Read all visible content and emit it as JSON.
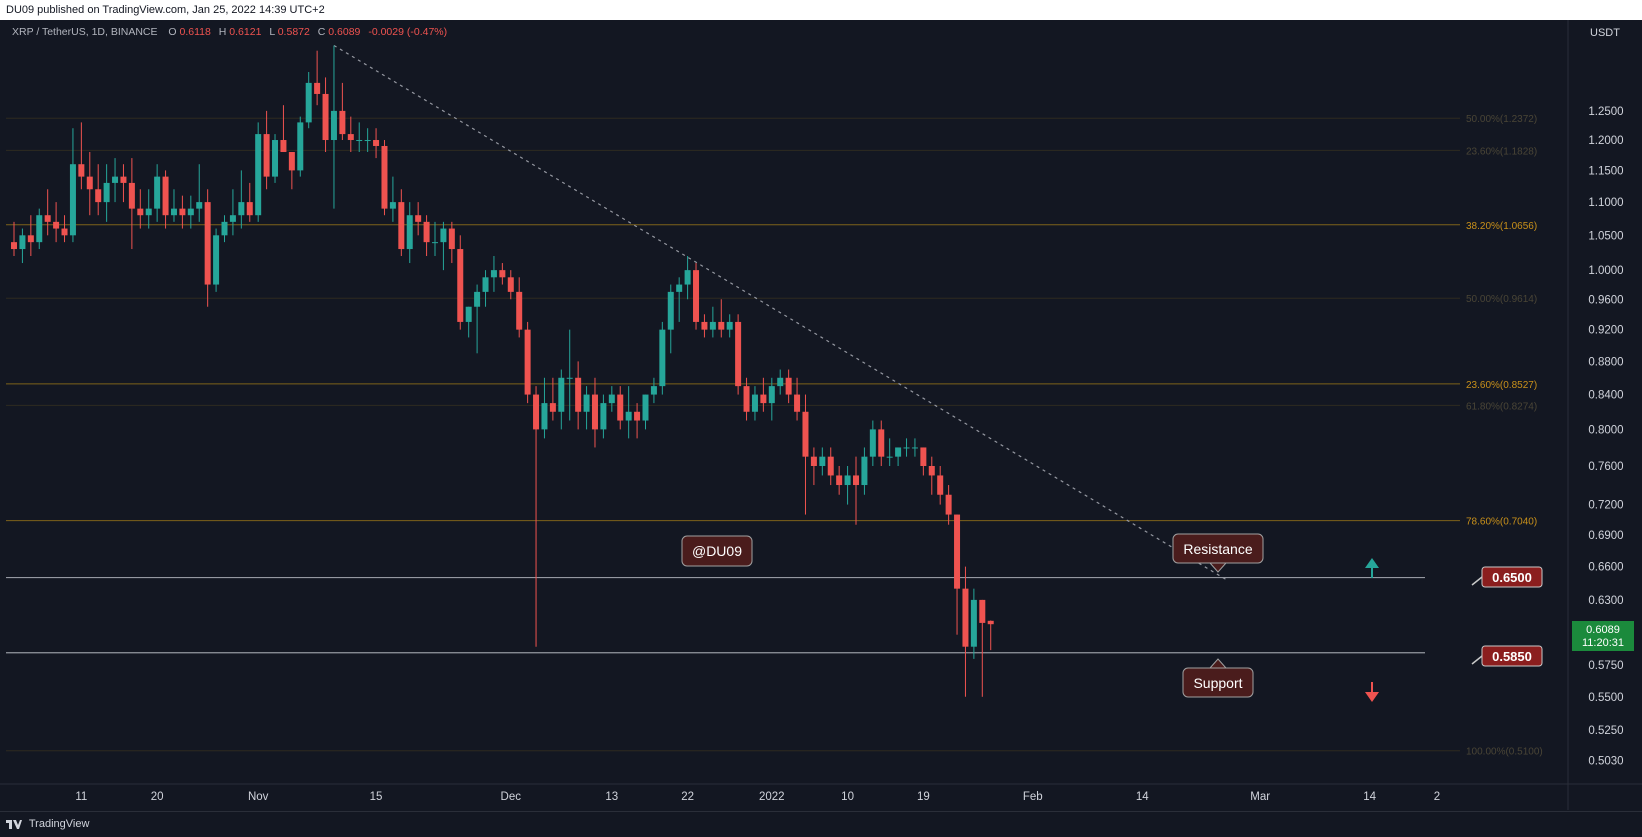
{
  "header": {
    "published_text": "DU09 published on TradingView.com, Jan 25, 2022 14:39 UTC+2"
  },
  "footer": {
    "brand": "TradingView"
  },
  "colors": {
    "background": "#131722",
    "up": "#26a69a",
    "down": "#ef5350",
    "fib": "#b8860b",
    "text": "#b2b5be",
    "grid": "#2a2e39",
    "label_bg": "#4a1c1c",
    "price_tag_bg": "#1b8a3c"
  },
  "chart_data": {
    "type": "candlestick",
    "symbol_line": {
      "symbol": "XRP / TetherUS, 1D, BINANCE",
      "o_label": "O",
      "o_value": "0.6118",
      "h_label": "H",
      "h_value": "0.6121",
      "l_label": "L",
      "l_value": "0.5872",
      "c_label": "C",
      "c_value": "0.6089",
      "change": "-0.0029 (-0.47%)"
    },
    "currency": "USDT",
    "y_scale": "log",
    "y_range": [
      0.495,
      1.4
    ],
    "x_range": [
      0,
      149
    ],
    "y_ticks": [
      "1.2500",
      "1.2000",
      "1.1500",
      "1.1000",
      "1.0500",
      "1.0000",
      "0.9600",
      "0.9200",
      "0.8800",
      "0.8400",
      "0.8000",
      "0.7600",
      "0.7200",
      "0.6900",
      "0.6600",
      "0.6300",
      "0.5750",
      "0.5500",
      "0.5250",
      "0.5030"
    ],
    "x_ticks": [
      {
        "label": "11",
        "day": 8
      },
      {
        "label": "20",
        "day": 17
      },
      {
        "label": "Nov",
        "day": 29
      },
      {
        "label": "15",
        "day": 43
      },
      {
        "label": "Dec",
        "day": 59
      },
      {
        "label": "13",
        "day": 71
      },
      {
        "label": "22",
        "day": 80
      },
      {
        "label": "2022",
        "day": 90
      },
      {
        "label": "10",
        "day": 99
      },
      {
        "label": "19",
        "day": 108
      },
      {
        "label": "Feb",
        "day": 121
      },
      {
        "label": "14",
        "day": 134
      },
      {
        "label": "Mar",
        "day": 148
      },
      {
        "label": "14",
        "day": 161
      },
      {
        "label": "2",
        "day": 169
      }
    ],
    "fib_levels": [
      {
        "label": "38.20%(1.0656)",
        "value": 1.0656,
        "style": "solid"
      },
      {
        "label": "23.60%(0.8527)",
        "value": 0.8527,
        "style": "solid"
      },
      {
        "label": "78.60%(0.7040)",
        "value": 0.704,
        "style": "solid"
      },
      {
        "label": "50.00%(1.2372)",
        "value": 1.2372,
        "style": "faint"
      },
      {
        "label": "23.60%(1.1828)",
        "value": 1.1828,
        "style": "faint"
      },
      {
        "label": "50.00%(0.9614)",
        "value": 0.9614,
        "style": "faint"
      },
      {
        "label": "61.80%(0.8274)",
        "value": 0.8274,
        "style": "faint"
      },
      {
        "label": "100.00%(0.5100)",
        "value": 0.51,
        "style": "faint"
      }
    ],
    "horizontal_levels": [
      {
        "name": "Resistance",
        "value": 0.65,
        "tag": "0.6500"
      },
      {
        "name": "Support",
        "value": 0.585,
        "tag": "0.5850"
      }
    ],
    "current_price": {
      "price": "0.6089",
      "countdown": "11:20:31"
    },
    "annotations": {
      "watermark": "@DU09",
      "resistance": "Resistance",
      "support": "Support"
    },
    "trendline": {
      "from": {
        "day": 38,
        "value": 1.37
      },
      "to": {
        "day": 144,
        "value": 0.648
      }
    },
    "candles": [
      {
        "o": 1.04,
        "h": 1.07,
        "l": 1.02,
        "c": 1.03
      },
      {
        "o": 1.03,
        "h": 1.06,
        "l": 1.01,
        "c": 1.05
      },
      {
        "o": 1.05,
        "h": 1.08,
        "l": 1.02,
        "c": 1.04
      },
      {
        "o": 1.04,
        "h": 1.09,
        "l": 1.03,
        "c": 1.08
      },
      {
        "o": 1.08,
        "h": 1.12,
        "l": 1.05,
        "c": 1.07
      },
      {
        "o": 1.07,
        "h": 1.1,
        "l": 1.04,
        "c": 1.06
      },
      {
        "o": 1.06,
        "h": 1.08,
        "l": 1.04,
        "c": 1.05
      },
      {
        "o": 1.05,
        "h": 1.22,
        "l": 1.04,
        "c": 1.16
      },
      {
        "o": 1.16,
        "h": 1.23,
        "l": 1.12,
        "c": 1.14
      },
      {
        "o": 1.14,
        "h": 1.18,
        "l": 1.08,
        "c": 1.12
      },
      {
        "o": 1.12,
        "h": 1.16,
        "l": 1.08,
        "c": 1.1
      },
      {
        "o": 1.1,
        "h": 1.16,
        "l": 1.07,
        "c": 1.13
      },
      {
        "o": 1.13,
        "h": 1.17,
        "l": 1.1,
        "c": 1.14
      },
      {
        "o": 1.14,
        "h": 1.16,
        "l": 1.1,
        "c": 1.13
      },
      {
        "o": 1.13,
        "h": 1.17,
        "l": 1.03,
        "c": 1.09
      },
      {
        "o": 1.09,
        "h": 1.12,
        "l": 1.06,
        "c": 1.08
      },
      {
        "o": 1.08,
        "h": 1.12,
        "l": 1.06,
        "c": 1.09
      },
      {
        "o": 1.09,
        "h": 1.16,
        "l": 1.07,
        "c": 1.14
      },
      {
        "o": 1.14,
        "h": 1.15,
        "l": 1.06,
        "c": 1.08
      },
      {
        "o": 1.08,
        "h": 1.12,
        "l": 1.07,
        "c": 1.09
      },
      {
        "o": 1.09,
        "h": 1.11,
        "l": 1.06,
        "c": 1.08
      },
      {
        "o": 1.08,
        "h": 1.11,
        "l": 1.06,
        "c": 1.09
      },
      {
        "o": 1.09,
        "h": 1.16,
        "l": 1.07,
        "c": 1.1
      },
      {
        "o": 1.1,
        "h": 1.12,
        "l": 0.95,
        "c": 0.98
      },
      {
        "o": 0.98,
        "h": 1.06,
        "l": 0.97,
        "c": 1.05
      },
      {
        "o": 1.05,
        "h": 1.08,
        "l": 1.04,
        "c": 1.07
      },
      {
        "o": 1.07,
        "h": 1.12,
        "l": 1.05,
        "c": 1.08
      },
      {
        "o": 1.08,
        "h": 1.15,
        "l": 1.06,
        "c": 1.1
      },
      {
        "o": 1.1,
        "h": 1.13,
        "l": 1.07,
        "c": 1.08
      },
      {
        "o": 1.08,
        "h": 1.23,
        "l": 1.07,
        "c": 1.21
      },
      {
        "o": 1.21,
        "h": 1.25,
        "l": 1.12,
        "c": 1.14
      },
      {
        "o": 1.14,
        "h": 1.21,
        "l": 1.13,
        "c": 1.2
      },
      {
        "o": 1.2,
        "h": 1.26,
        "l": 1.18,
        "c": 1.18
      },
      {
        "o": 1.18,
        "h": 1.18,
        "l": 1.12,
        "c": 1.15
      },
      {
        "o": 1.15,
        "h": 1.24,
        "l": 1.14,
        "c": 1.23
      },
      {
        "o": 1.23,
        "h": 1.32,
        "l": 1.22,
        "c": 1.3
      },
      {
        "o": 1.3,
        "h": 1.36,
        "l": 1.26,
        "c": 1.28
      },
      {
        "o": 1.28,
        "h": 1.31,
        "l": 1.18,
        "c": 1.2
      },
      {
        "o": 1.2,
        "h": 1.37,
        "l": 1.09,
        "c": 1.25
      },
      {
        "o": 1.25,
        "h": 1.3,
        "l": 1.2,
        "c": 1.21
      },
      {
        "o": 1.21,
        "h": 1.24,
        "l": 1.18,
        "c": 1.2
      },
      {
        "o": 1.2,
        "h": 1.23,
        "l": 1.18,
        "c": 1.2
      },
      {
        "o": 1.2,
        "h": 1.22,
        "l": 1.18,
        "c": 1.2
      },
      {
        "o": 1.2,
        "h": 1.22,
        "l": 1.17,
        "c": 1.19
      },
      {
        "o": 1.19,
        "h": 1.2,
        "l": 1.08,
        "c": 1.09
      },
      {
        "o": 1.09,
        "h": 1.14,
        "l": 1.07,
        "c": 1.1
      },
      {
        "o": 1.1,
        "h": 1.12,
        "l": 1.02,
        "c": 1.03
      },
      {
        "o": 1.03,
        "h": 1.1,
        "l": 1.01,
        "c": 1.08
      },
      {
        "o": 1.08,
        "h": 1.1,
        "l": 1.05,
        "c": 1.07
      },
      {
        "o": 1.07,
        "h": 1.08,
        "l": 1.02,
        "c": 1.04
      },
      {
        "o": 1.04,
        "h": 1.07,
        "l": 1.02,
        "c": 1.04
      },
      {
        "o": 1.04,
        "h": 1.07,
        "l": 1.0,
        "c": 1.06
      },
      {
        "o": 1.06,
        "h": 1.07,
        "l": 1.01,
        "c": 1.03
      },
      {
        "o": 1.03,
        "h": 1.05,
        "l": 0.92,
        "c": 0.93
      },
      {
        "o": 0.93,
        "h": 0.95,
        "l": 0.91,
        "c": 0.95
      },
      {
        "o": 0.95,
        "h": 0.98,
        "l": 0.89,
        "c": 0.97
      },
      {
        "o": 0.97,
        "h": 1.0,
        "l": 0.95,
        "c": 0.99
      },
      {
        "o": 0.99,
        "h": 1.02,
        "l": 0.97,
        "c": 1.0
      },
      {
        "o": 1.0,
        "h": 1.01,
        "l": 0.98,
        "c": 0.99
      },
      {
        "o": 0.99,
        "h": 1.0,
        "l": 0.96,
        "c": 0.97
      },
      {
        "o": 0.97,
        "h": 0.99,
        "l": 0.91,
        "c": 0.92
      },
      {
        "o": 0.92,
        "h": 0.93,
        "l": 0.83,
        "c": 0.84
      },
      {
        "o": 0.84,
        "h": 0.85,
        "l": 0.59,
        "c": 0.8
      },
      {
        "o": 0.8,
        "h": 0.86,
        "l": 0.79,
        "c": 0.83
      },
      {
        "o": 0.83,
        "h": 0.86,
        "l": 0.81,
        "c": 0.82
      },
      {
        "o": 0.82,
        "h": 0.87,
        "l": 0.8,
        "c": 0.86
      },
      {
        "o": 0.86,
        "h": 0.92,
        "l": 0.81,
        "c": 0.86
      },
      {
        "o": 0.86,
        "h": 0.88,
        "l": 0.8,
        "c": 0.82
      },
      {
        "o": 0.82,
        "h": 0.85,
        "l": 0.8,
        "c": 0.84
      },
      {
        "o": 0.84,
        "h": 0.86,
        "l": 0.78,
        "c": 0.8
      },
      {
        "o": 0.8,
        "h": 0.84,
        "l": 0.79,
        "c": 0.83
      },
      {
        "o": 0.83,
        "h": 0.85,
        "l": 0.82,
        "c": 0.84
      },
      {
        "o": 0.84,
        "h": 0.85,
        "l": 0.8,
        "c": 0.81
      },
      {
        "o": 0.81,
        "h": 0.85,
        "l": 0.79,
        "c": 0.82
      },
      {
        "o": 0.82,
        "h": 0.83,
        "l": 0.79,
        "c": 0.81
      },
      {
        "o": 0.81,
        "h": 0.84,
        "l": 0.8,
        "c": 0.84
      },
      {
        "o": 0.84,
        "h": 0.86,
        "l": 0.83,
        "c": 0.85
      },
      {
        "o": 0.85,
        "h": 0.93,
        "l": 0.84,
        "c": 0.92
      },
      {
        "o": 0.92,
        "h": 0.98,
        "l": 0.89,
        "c": 0.97
      },
      {
        "o": 0.97,
        "h": 0.99,
        "l": 0.93,
        "c": 0.98
      },
      {
        "o": 0.98,
        "h": 1.02,
        "l": 0.96,
        "c": 1.0
      },
      {
        "o": 1.0,
        "h": 1.01,
        "l": 0.92,
        "c": 0.93
      },
      {
        "o": 0.93,
        "h": 0.94,
        "l": 0.91,
        "c": 0.92
      },
      {
        "o": 0.92,
        "h": 0.95,
        "l": 0.91,
        "c": 0.93
      },
      {
        "o": 0.93,
        "h": 0.96,
        "l": 0.91,
        "c": 0.92
      },
      {
        "o": 0.92,
        "h": 0.94,
        "l": 0.91,
        "c": 0.93
      },
      {
        "o": 0.93,
        "h": 0.94,
        "l": 0.84,
        "c": 0.85
      },
      {
        "o": 0.85,
        "h": 0.86,
        "l": 0.81,
        "c": 0.82
      },
      {
        "o": 0.82,
        "h": 0.85,
        "l": 0.81,
        "c": 0.84
      },
      {
        "o": 0.84,
        "h": 0.86,
        "l": 0.82,
        "c": 0.83
      },
      {
        "o": 0.83,
        "h": 0.86,
        "l": 0.81,
        "c": 0.85
      },
      {
        "o": 0.85,
        "h": 0.87,
        "l": 0.84,
        "c": 0.86
      },
      {
        "o": 0.86,
        "h": 0.87,
        "l": 0.83,
        "c": 0.84
      },
      {
        "o": 0.84,
        "h": 0.86,
        "l": 0.81,
        "c": 0.82
      },
      {
        "o": 0.82,
        "h": 0.84,
        "l": 0.71,
        "c": 0.77
      },
      {
        "o": 0.77,
        "h": 0.78,
        "l": 0.74,
        "c": 0.76
      },
      {
        "o": 0.76,
        "h": 0.78,
        "l": 0.75,
        "c": 0.77
      },
      {
        "o": 0.77,
        "h": 0.78,
        "l": 0.74,
        "c": 0.75
      },
      {
        "o": 0.75,
        "h": 0.76,
        "l": 0.73,
        "c": 0.74
      },
      {
        "o": 0.74,
        "h": 0.76,
        "l": 0.72,
        "c": 0.75
      },
      {
        "o": 0.75,
        "h": 0.77,
        "l": 0.7,
        "c": 0.74
      },
      {
        "o": 0.74,
        "h": 0.78,
        "l": 0.73,
        "c": 0.77
      },
      {
        "o": 0.77,
        "h": 0.81,
        "l": 0.76,
        "c": 0.8
      },
      {
        "o": 0.8,
        "h": 0.81,
        "l": 0.76,
        "c": 0.77
      },
      {
        "o": 0.77,
        "h": 0.79,
        "l": 0.76,
        "c": 0.77
      },
      {
        "o": 0.77,
        "h": 0.78,
        "l": 0.76,
        "c": 0.78
      },
      {
        "o": 0.78,
        "h": 0.79,
        "l": 0.77,
        "c": 0.78
      },
      {
        "o": 0.78,
        "h": 0.79,
        "l": 0.77,
        "c": 0.78
      },
      {
        "o": 0.78,
        "h": 0.78,
        "l": 0.75,
        "c": 0.76
      },
      {
        "o": 0.76,
        "h": 0.77,
        "l": 0.73,
        "c": 0.75
      },
      {
        "o": 0.75,
        "h": 0.76,
        "l": 0.72,
        "c": 0.73
      },
      {
        "o": 0.73,
        "h": 0.74,
        "l": 0.7,
        "c": 0.71
      },
      {
        "o": 0.71,
        "h": 0.71,
        "l": 0.6,
        "c": 0.64
      },
      {
        "o": 0.64,
        "h": 0.66,
        "l": 0.55,
        "c": 0.59
      },
      {
        "o": 0.59,
        "h": 0.64,
        "l": 0.58,
        "c": 0.63
      },
      {
        "o": 0.63,
        "h": 0.63,
        "l": 0.55,
        "c": 0.61
      },
      {
        "o": 0.6118,
        "h": 0.6121,
        "l": 0.5872,
        "c": 0.6089
      }
    ]
  }
}
